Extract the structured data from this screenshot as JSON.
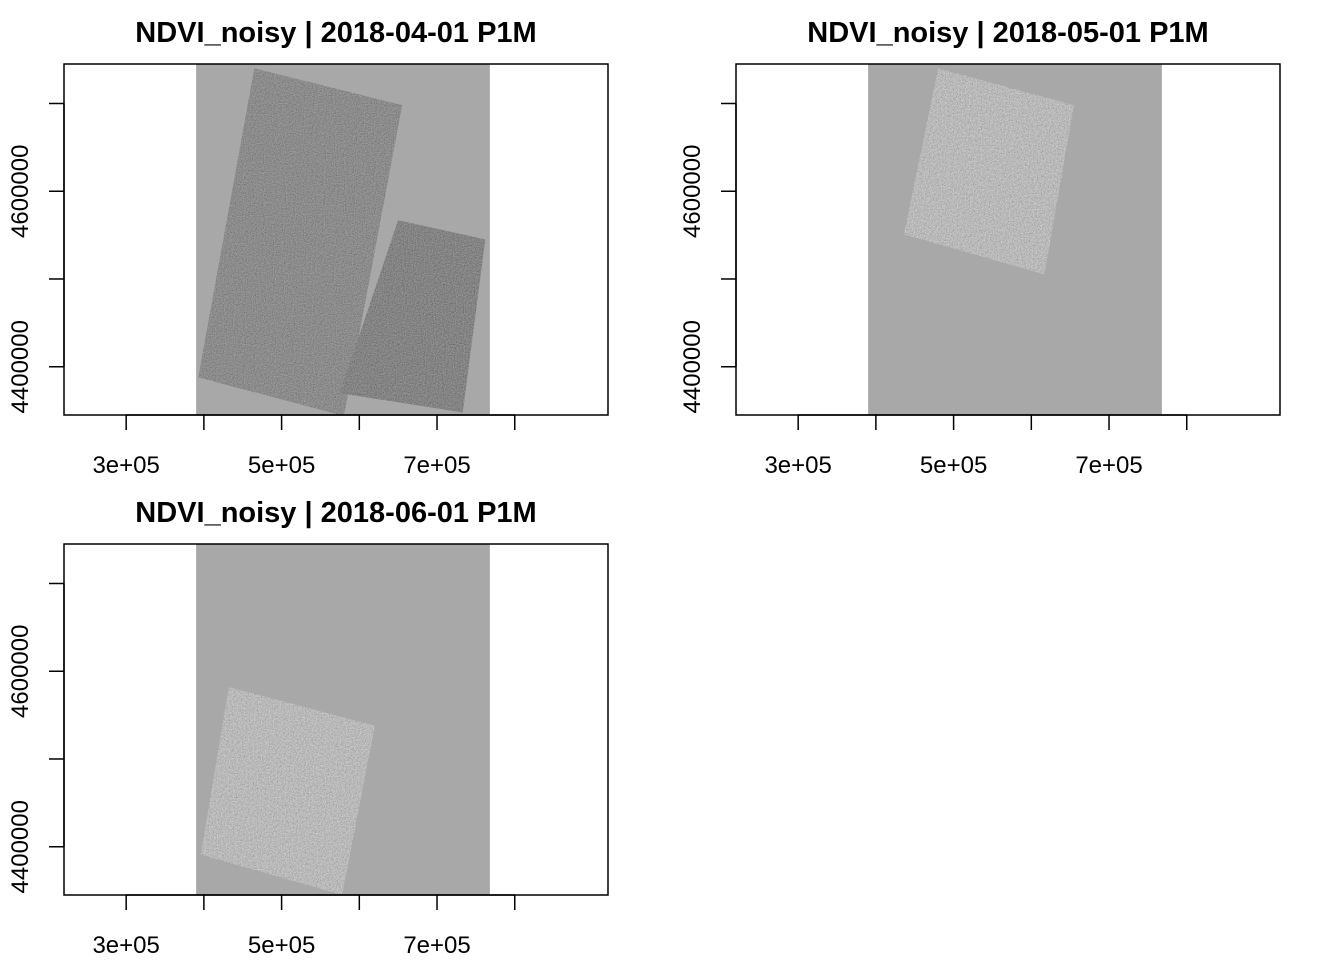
{
  "panels": [
    {
      "title": "NDVI_noisy | 2018-04-01 P1M",
      "chart_data": {
        "type": "heatmap",
        "title": "NDVI_noisy | 2018-04-01 P1M",
        "xlabel": "",
        "ylabel": "",
        "xlim": [
          220000,
          920000
        ],
        "ylim": [
          4345000,
          4745000
        ],
        "x_ticks": [
          {
            "value": 300000,
            "label": "3e+05"
          },
          {
            "value": 400000,
            "label": ""
          },
          {
            "value": 500000,
            "label": "5e+05"
          },
          {
            "value": 600000,
            "label": ""
          },
          {
            "value": 700000,
            "label": "7e+05"
          },
          {
            "value": 800000,
            "label": ""
          }
        ],
        "y_ticks": [
          {
            "value": 4400000,
            "label": "4400000"
          },
          {
            "value": 4500000,
            "label": ""
          },
          {
            "value": 4600000,
            "label": "4600000"
          },
          {
            "value": 4700000,
            "label": ""
          }
        ],
        "extent_x": [
          390000,
          768000
        ],
        "footprints": [
          {
            "tone": "mid",
            "corners": [
              [
                465000,
                4740000
              ],
              [
                655000,
                4698000
              ],
              [
                580000,
                4344000
              ],
              [
                393000,
                4388000
              ]
            ]
          },
          {
            "tone": "dark",
            "corners": [
              [
                650000,
                4567000
              ],
              [
                762000,
                4545000
              ],
              [
                733000,
                4348000
              ],
              [
                575000,
                4370000
              ]
            ]
          }
        ],
        "grid": false,
        "legend": "none"
      }
    },
    {
      "title": "NDVI_noisy | 2018-05-01 P1M",
      "chart_data": {
        "type": "heatmap",
        "title": "NDVI_noisy | 2018-05-01 P1M",
        "xlabel": "",
        "ylabel": "",
        "xlim": [
          220000,
          920000
        ],
        "ylim": [
          4345000,
          4745000
        ],
        "x_ticks": [
          {
            "value": 300000,
            "label": "3e+05"
          },
          {
            "value": 400000,
            "label": ""
          },
          {
            "value": 500000,
            "label": "5e+05"
          },
          {
            "value": 600000,
            "label": ""
          },
          {
            "value": 700000,
            "label": "7e+05"
          },
          {
            "value": 800000,
            "label": ""
          }
        ],
        "y_ticks": [
          {
            "value": 4400000,
            "label": "4400000"
          },
          {
            "value": 4500000,
            "label": ""
          },
          {
            "value": 4600000,
            "label": "4600000"
          },
          {
            "value": 4700000,
            "label": ""
          }
        ],
        "extent_x": [
          390000,
          768000
        ],
        "footprints": [
          {
            "tone": "light",
            "corners": [
              [
                480000,
                4740000
              ],
              [
                655000,
                4698000
              ],
              [
                617000,
                4505000
              ],
              [
                436000,
                4551000
              ]
            ]
          }
        ],
        "grid": false,
        "legend": "none"
      }
    },
    {
      "title": "NDVI_noisy | 2018-06-01 P1M",
      "chart_data": {
        "type": "heatmap",
        "title": "NDVI_noisy | 2018-06-01 P1M",
        "xlabel": "",
        "ylabel": "",
        "xlim": [
          220000,
          920000
        ],
        "ylim": [
          4345000,
          4745000
        ],
        "x_ticks": [
          {
            "value": 300000,
            "label": "3e+05"
          },
          {
            "value": 400000,
            "label": ""
          },
          {
            "value": 500000,
            "label": "5e+05"
          },
          {
            "value": 600000,
            "label": ""
          },
          {
            "value": 700000,
            "label": "7e+05"
          },
          {
            "value": 800000,
            "label": ""
          }
        ],
        "y_ticks": [
          {
            "value": 4400000,
            "label": "4400000"
          },
          {
            "value": 4500000,
            "label": ""
          },
          {
            "value": 4600000,
            "label": "4600000"
          },
          {
            "value": 4700000,
            "label": ""
          }
        ],
        "extent_x": [
          390000,
          768000
        ],
        "footprints": [
          {
            "tone": "light",
            "corners": [
              [
                432000,
                4582000
              ],
              [
                620000,
                4538000
              ],
              [
                578000,
                4345000
              ],
              [
                396000,
                4391000
              ]
            ]
          }
        ],
        "grid": false,
        "legend": "none"
      }
    }
  ],
  "colors": {
    "background": "#ffffff",
    "na_fill": "#a8a8a8",
    "axis": "#000000",
    "tone_mid": "#6e6e6e",
    "tone_dark": "#575757",
    "tone_light": "#9a9a9a"
  }
}
